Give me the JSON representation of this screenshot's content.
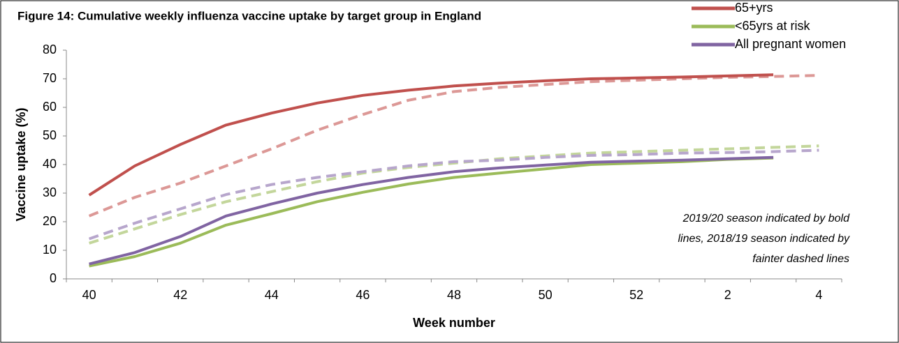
{
  "chart_data": {
    "type": "line",
    "title": "Figure 14: Cumulative weekly influenza vaccine uptake by target group in England",
    "x_label": "Week number",
    "y_label": "Vaccine uptake (%)",
    "categories": [
      40,
      null,
      42,
      null,
      44,
      null,
      46,
      null,
      48,
      null,
      50,
      null,
      52,
      null,
      2,
      null,
      4
    ],
    "ylim": [
      0,
      80
    ],
    "yticks": [
      0,
      10,
      20,
      30,
      40,
      50,
      60,
      70,
      80
    ],
    "legend": "top-right",
    "annotation": [
      "2019/20 season indicated by bold",
      "lines, 2018/19 season indicated by",
      "fainter dashed lines"
    ],
    "series": [
      {
        "name": "65+yrs",
        "color": "#c0504d",
        "dashed": false,
        "values": [
          29.3,
          39.5,
          47,
          53.8,
          58,
          61.5,
          64.2,
          66,
          67.5,
          68.5,
          69.3,
          70,
          70.3,
          70.6,
          71,
          71.4,
          null
        ]
      },
      {
        "name": "<65yrs at risk",
        "color": "#9bbb59",
        "dashed": false,
        "values": [
          4.5,
          7.8,
          12.5,
          18.8,
          22.8,
          27,
          30.3,
          33.2,
          35.5,
          37,
          38.5,
          40,
          40.5,
          41,
          41.8,
          42.3,
          null
        ]
      },
      {
        "name": "All pregnant women",
        "color": "#8064a2",
        "dashed": false,
        "values": [
          5.2,
          9.2,
          14.8,
          22,
          26.2,
          30,
          33,
          35.5,
          37.5,
          38.8,
          39.8,
          40.8,
          41.2,
          41.5,
          42,
          42.5,
          null
        ]
      },
      {
        "color": "#dc9896",
        "dashed": true,
        "values": [
          22,
          28.5,
          33.5,
          39.5,
          45.5,
          52,
          57.5,
          62.5,
          65.5,
          67,
          68,
          69,
          69.5,
          70,
          70.5,
          70.8,
          71.2
        ]
      },
      {
        "color": "#c3d69b",
        "dashed": true,
        "values": [
          12.5,
          17.5,
          22.5,
          27,
          30.5,
          34,
          37,
          39,
          40.5,
          42,
          43,
          44,
          44.5,
          45,
          45.5,
          46,
          46.5
        ]
      },
      {
        "color": "#b7a6cc",
        "dashed": true,
        "values": [
          14,
          19.5,
          24.5,
          29.5,
          33,
          35.5,
          37.5,
          39.5,
          41,
          41.5,
          42.5,
          43.2,
          43.5,
          44,
          44.2,
          44.5,
          45
        ]
      }
    ]
  }
}
